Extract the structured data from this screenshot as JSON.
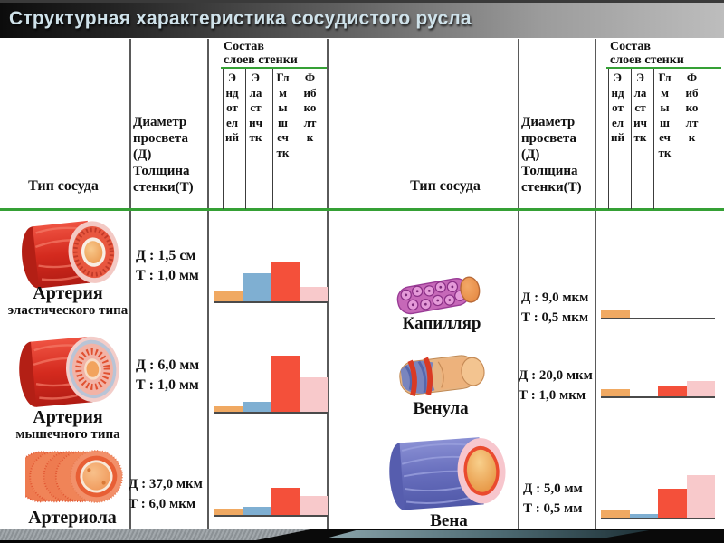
{
  "title": "Структурная характеристика сосудистого русла",
  "header": {
    "type_col": "Тип сосуда",
    "diameter_col": "Диаметр\nпросвета\n(Д)\nТолщина\nстенки(Т)",
    "layers_col": "Состав\nслоев стенки",
    "layers": [
      "Эндотелий",
      "Эластичтк",
      "Глмышечтк",
      "Фибколтк"
    ]
  },
  "rows_left": [
    {
      "name": "Артерия",
      "subtitle": "эластического типа",
      "d": "Д : 1,5 см",
      "t": "Т : 1,0 мм"
    },
    {
      "name": "Артерия",
      "subtitle": "мышечного типа",
      "d": "Д : 6,0 мм",
      "t": "Т : 1,0 мм"
    },
    {
      "name": "Артериола",
      "subtitle": "",
      "d": "Д : 37,0 мкм",
      "t": "Т : 6,0 мкм"
    }
  ],
  "rows_right": [
    {
      "name": "Капилляр",
      "d": "Д : 9,0 мкм",
      "t": "Т : 0,5 мкм"
    },
    {
      "name": "Венула",
      "d": "Д : 20,0 мкм",
      "t": "Т : 1,0 мкм"
    },
    {
      "name": "Вена",
      "d": "Д : 5,0 мм",
      "t": "Т : 0,5 мм"
    }
  ],
  "chart_data": {
    "type": "bar",
    "categories": [
      "Эндотелий",
      "Эластичтк",
      "Глмышечтк",
      "Фибколтк"
    ],
    "value_unit": "relative wall-layer thickness (px of bar height, no axis shown)",
    "palette": [
      "#F0A962",
      "#7FAFD2",
      "#F4503A",
      "#F8C9CB"
    ],
    "grid": false,
    "legend": "none",
    "series": [
      {
        "name": "Артерия эластического типа",
        "values": [
          12,
          31,
          44,
          16
        ]
      },
      {
        "name": "Артерия мышечного типа",
        "values": [
          6,
          11,
          62,
          38
        ]
      },
      {
        "name": "Артериола",
        "values": [
          7,
          9,
          30,
          21
        ]
      },
      {
        "name": "Капилляр",
        "values": [
          8,
          0,
          0,
          0
        ]
      },
      {
        "name": "Венула",
        "values": [
          8,
          0,
          11,
          17
        ]
      },
      {
        "name": "Вена",
        "values": [
          8,
          4,
          32,
          47
        ]
      }
    ]
  },
  "colors": {
    "accent_green": "#35A035",
    "title_text": "#CFE2EA",
    "chart_baseline": "#4A4A4A"
  }
}
